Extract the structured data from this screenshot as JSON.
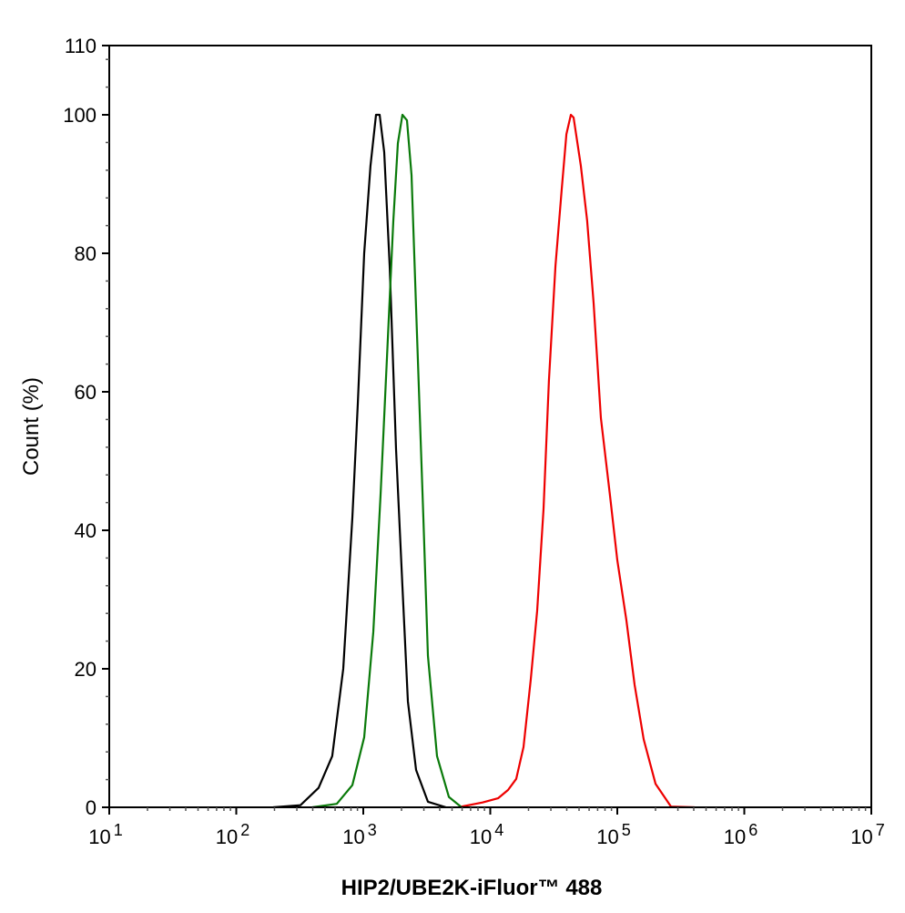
{
  "chart_data": {
    "type": "line",
    "title": "",
    "xlabel": "HIP2/UBE2K-iFluor™ 488",
    "ylabel": "Count  (%)",
    "xscale": "log",
    "xlim": [
      10,
      10000000
    ],
    "ylim": [
      0,
      110
    ],
    "xticks": [
      {
        "base": "10",
        "exp": "1"
      },
      {
        "base": "10",
        "exp": "2"
      },
      {
        "base": "10",
        "exp": "3"
      },
      {
        "base": "10",
        "exp": "4"
      },
      {
        "base": "10",
        "exp": "5"
      },
      {
        "base": "10",
        "exp": "6"
      },
      {
        "base": "10",
        "exp": "7"
      }
    ],
    "yticks": [
      "0",
      "20",
      "40",
      "60",
      "80",
      "100",
      "110"
    ],
    "grid": false,
    "legend": "none",
    "series": [
      {
        "color": "#000000",
        "points": [
          [
            195,
            0
          ],
          [
            320,
            0.3
          ],
          [
            445,
            2.8
          ],
          [
            570,
            7.4
          ],
          [
            695,
            20
          ],
          [
            820,
            41.8
          ],
          [
            906,
            58.3
          ],
          [
            1016,
            80
          ],
          [
            1140,
            92.6
          ],
          [
            1260,
            100
          ],
          [
            1346,
            100
          ],
          [
            1462,
            94.6
          ],
          [
            1614,
            78.2
          ],
          [
            1811,
            51.7
          ],
          [
            2032,
            31.9
          ],
          [
            2244,
            15.3
          ],
          [
            2604,
            5.4
          ],
          [
            3228,
            0.8
          ],
          [
            4487,
            0
          ]
        ]
      },
      {
        "color": "#0a7a0a",
        "points": [
          [
            397,
            0
          ],
          [
            619,
            0.5
          ],
          [
            820,
            3.2
          ],
          [
            1016,
            10.1
          ],
          [
            1199,
            25.3
          ],
          [
            1368,
            45.1
          ],
          [
            1535,
            64.9
          ],
          [
            1724,
            84.7
          ],
          [
            1871,
            95.9
          ],
          [
            2032,
            100
          ],
          [
            2208,
            99.2
          ],
          [
            2399,
            91.3
          ],
          [
            2649,
            68.3
          ],
          [
            2972,
            41.8
          ],
          [
            3228,
            21.9
          ],
          [
            3808,
            7.4
          ],
          [
            4721,
            1.5
          ],
          [
            5945,
            0
          ]
        ]
      },
      {
        "color": "#ee0000",
        "points": [
          [
            5945,
            0.1
          ],
          [
            8690,
            0.7
          ],
          [
            11510,
            1.3
          ],
          [
            13800,
            2.5
          ],
          [
            16000,
            4.1
          ],
          [
            18270,
            8.7
          ],
          [
            20850,
            18.5
          ],
          [
            23390,
            28.4
          ],
          [
            26250,
            43.1
          ],
          [
            28970,
            61.6
          ],
          [
            32580,
            78.2
          ],
          [
            36550,
            89.3
          ],
          [
            39720,
            97.2
          ],
          [
            43060,
            100
          ],
          [
            45290,
            99.6
          ],
          [
            51650,
            92.6
          ],
          [
            57950,
            84.7
          ],
          [
            65130,
            72.8
          ],
          [
            74300,
            56.2
          ],
          [
            87680,
            45.0
          ],
          [
            100000,
            35.7
          ],
          [
            118000,
            27.0
          ],
          [
            136800,
            17.7
          ],
          [
            161400,
            9.8
          ],
          [
            200000,
            3.4
          ],
          [
            264900,
            0.1
          ],
          [
            406400,
            0
          ]
        ]
      }
    ]
  }
}
